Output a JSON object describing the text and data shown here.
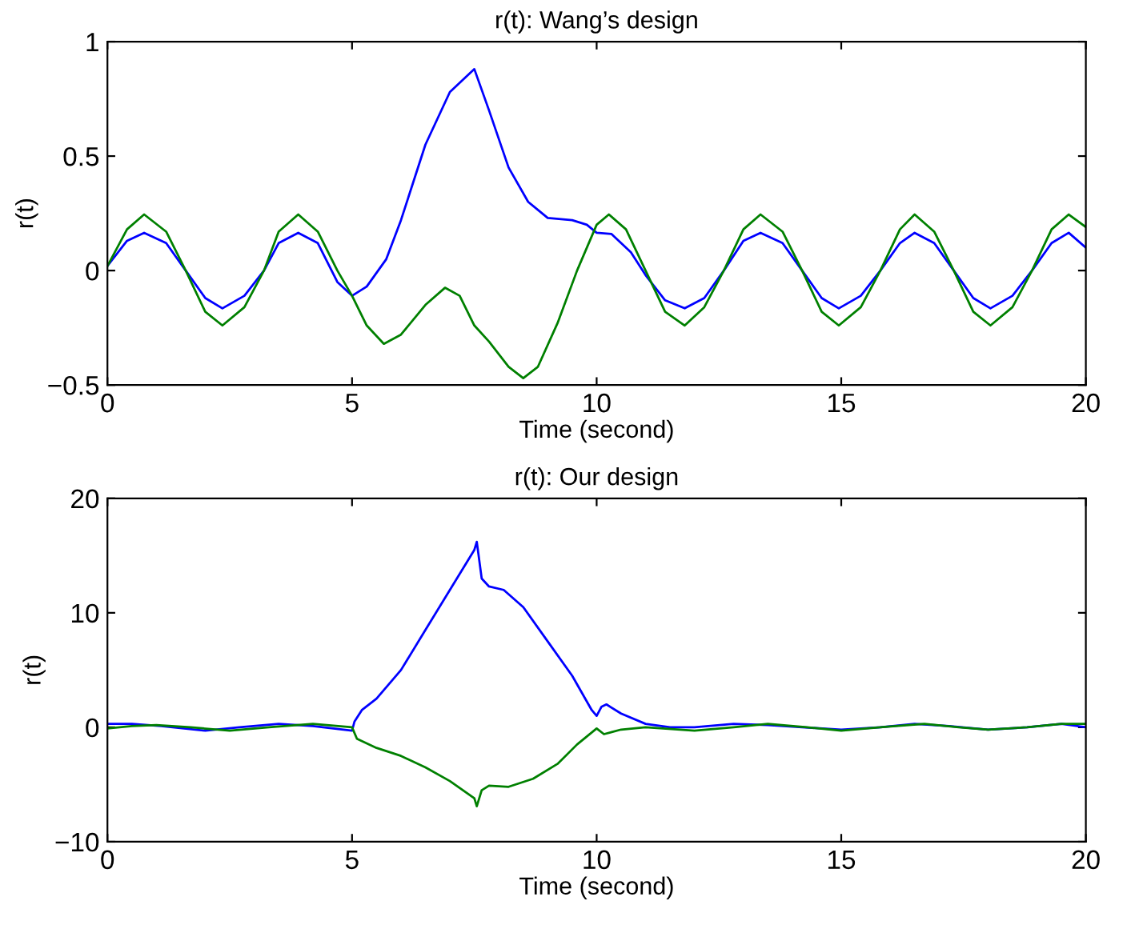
{
  "chart_data": [
    {
      "type": "line",
      "title": "r(t): Wang’s design",
      "xlabel": "Time (second)",
      "ylabel": "r(t)",
      "xlim": [
        0,
        20
      ],
      "ylim": [
        -0.5,
        1
      ],
      "xticks": [
        0,
        5,
        10,
        15,
        20
      ],
      "yticks": [
        {
          "value": -0.5,
          "label": "−0.5"
        },
        0,
        0.5,
        1
      ],
      "grid": false,
      "series": [
        {
          "color": "#0000ff",
          "x": [
            0,
            0.4,
            0.75,
            1.2,
            1.6,
            2.0,
            2.35,
            2.8,
            3.2,
            3.5,
            3.9,
            4.3,
            4.7,
            5.0,
            5.3,
            5.7,
            6.0,
            6.5,
            7.0,
            7.5,
            7.8,
            8.2,
            8.6,
            9.0,
            9.5,
            9.8,
            10.0,
            10.3,
            10.7,
            11.0,
            11.4,
            11.8,
            12.2,
            12.6,
            13.0,
            13.35,
            13.8,
            14.2,
            14.6,
            14.95,
            15.4,
            15.8,
            16.2,
            16.5,
            16.9,
            17.3,
            17.7,
            18.05,
            18.5,
            18.9,
            19.3,
            19.65,
            20
          ],
          "values": [
            0.02,
            0.13,
            0.165,
            0.12,
            0.0,
            -0.12,
            -0.165,
            -0.11,
            0.0,
            0.12,
            0.165,
            0.12,
            -0.05,
            -0.11,
            -0.07,
            0.05,
            0.22,
            0.55,
            0.78,
            0.88,
            0.7,
            0.45,
            0.3,
            0.23,
            0.22,
            0.2,
            0.165,
            0.16,
            0.08,
            -0.02,
            -0.13,
            -0.165,
            -0.12,
            0.0,
            0.13,
            0.165,
            0.12,
            0.0,
            -0.12,
            -0.165,
            -0.11,
            0.0,
            0.12,
            0.165,
            0.12,
            0.0,
            -0.12,
            -0.165,
            -0.11,
            0.0,
            0.12,
            0.165,
            0.1
          ]
        },
        {
          "color": "#008000",
          "x": [
            0,
            0.4,
            0.75,
            1.2,
            1.6,
            2.0,
            2.35,
            2.8,
            3.2,
            3.5,
            3.9,
            4.3,
            4.7,
            5.0,
            5.3,
            5.65,
            6.0,
            6.5,
            6.9,
            7.2,
            7.5,
            7.8,
            8.2,
            8.5,
            8.8,
            9.2,
            9.6,
            10.0,
            10.25,
            10.6,
            11.0,
            11.4,
            11.8,
            12.2,
            12.6,
            13.0,
            13.35,
            13.8,
            14.2,
            14.6,
            14.95,
            15.4,
            15.8,
            16.2,
            16.5,
            16.9,
            17.3,
            17.7,
            18.05,
            18.5,
            18.9,
            19.3,
            19.65,
            20
          ],
          "values": [
            0.02,
            0.18,
            0.245,
            0.17,
            0.0,
            -0.18,
            -0.24,
            -0.16,
            0.0,
            0.17,
            0.245,
            0.17,
            0.0,
            -0.11,
            -0.24,
            -0.32,
            -0.28,
            -0.15,
            -0.075,
            -0.11,
            -0.24,
            -0.31,
            -0.42,
            -0.47,
            -0.42,
            -0.23,
            0.0,
            0.2,
            0.245,
            0.18,
            0.0,
            -0.18,
            -0.24,
            -0.16,
            0.0,
            0.18,
            0.245,
            0.17,
            0.0,
            -0.18,
            -0.24,
            -0.16,
            0.0,
            0.18,
            0.245,
            0.17,
            0.0,
            -0.18,
            -0.24,
            -0.16,
            0.0,
            0.18,
            0.245,
            0.19
          ]
        }
      ]
    },
    {
      "type": "line",
      "title": "r(t): Our design",
      "xlabel": "Time (second)",
      "ylabel": "r(t)",
      "xlim": [
        0,
        20
      ],
      "ylim": [
        -10,
        20
      ],
      "xticks": [
        0,
        5,
        10,
        15,
        20
      ],
      "yticks": [
        {
          "value": -10,
          "label": "−10"
        },
        0,
        10,
        20
      ],
      "grid": false,
      "series": [
        {
          "color": "#0000ff",
          "x": [
            0,
            0.5,
            1.1,
            2,
            2.7,
            3.5,
            4.2,
            5.0,
            5.05,
            5.2,
            5.5,
            6,
            6.5,
            7,
            7.5,
            7.55,
            7.65,
            7.8,
            8.1,
            8.5,
            9,
            9.5,
            9.9,
            10.0,
            10.1,
            10.2,
            10.5,
            11,
            11.5,
            12,
            12.8,
            13.5,
            14.2,
            15,
            15.8,
            16.5,
            17.2,
            18,
            18.8,
            19.5,
            20
          ],
          "values": [
            0.3,
            0.3,
            0.1,
            -0.3,
            0.0,
            0.3,
            0.1,
            -0.3,
            0.5,
            1.5,
            2.5,
            5,
            8.5,
            12,
            15.5,
            16.2,
            13,
            12.3,
            12,
            10.5,
            7.5,
            4.5,
            1.5,
            1.0,
            1.8,
            2.0,
            1.2,
            0.3,
            0.0,
            0.0,
            0.3,
            0.2,
            0.0,
            -0.2,
            0.0,
            0.3,
            0.1,
            -0.2,
            0.0,
            0.3,
            0.0
          ]
        },
        {
          "color": "#008000",
          "x": [
            0,
            0.5,
            1.0,
            1.7,
            2.5,
            3.3,
            4.2,
            5.0,
            5.1,
            5.5,
            6.0,
            6.5,
            7,
            7.5,
            7.55,
            7.65,
            7.8,
            8.2,
            8.7,
            9.2,
            9.6,
            10.0,
            10.15,
            10.5,
            11,
            12,
            12.8,
            13.5,
            14.3,
            15,
            15.8,
            16.7,
            17.4,
            18,
            18.8,
            19.5,
            20
          ],
          "values": [
            -0.1,
            0.1,
            0.2,
            0.0,
            -0.3,
            0.0,
            0.3,
            0.0,
            -1.0,
            -1.8,
            -2.5,
            -3.5,
            -4.7,
            -6.2,
            -6.9,
            -5.5,
            -5.1,
            -5.2,
            -4.5,
            -3.2,
            -1.5,
            -0.1,
            -0.6,
            -0.2,
            0.0,
            -0.3,
            0.0,
            0.3,
            0.0,
            -0.3,
            0.0,
            0.3,
            0.0,
            -0.2,
            0.0,
            0.3,
            0.3
          ]
        }
      ]
    }
  ]
}
